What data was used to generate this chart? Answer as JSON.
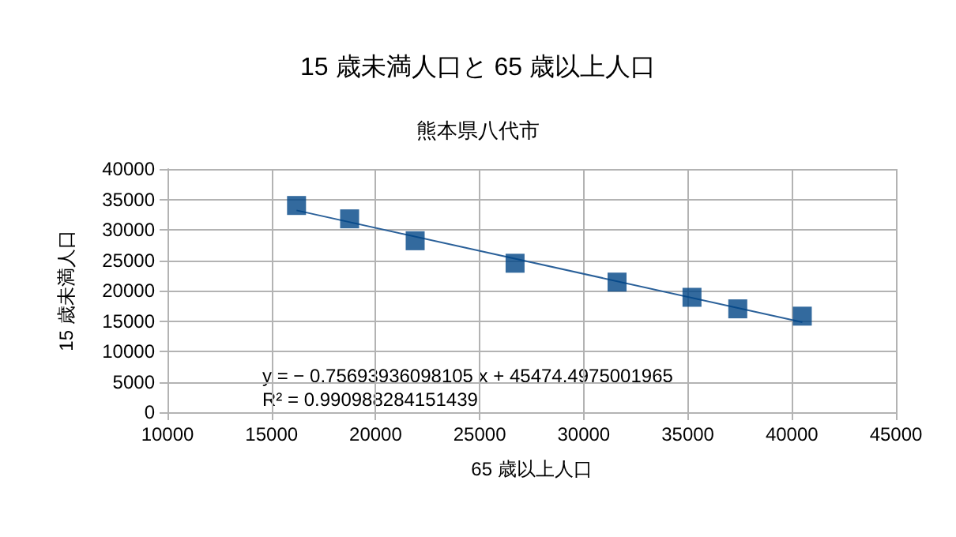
{
  "chart_data": {
    "type": "scatter",
    "title": "15 歳未満人口と 65 歳以上人口",
    "subtitle": "熊本県八代市",
    "xlabel": "65 歳以上人口",
    "ylabel": "15 歳未満人口",
    "xlim": [
      10000,
      45000
    ],
    "xticks": [
      10000,
      15000,
      20000,
      25000,
      30000,
      35000,
      40000,
      45000
    ],
    "ylim": [
      0,
      40000
    ],
    "yticks": [
      0,
      5000,
      10000,
      15000,
      20000,
      25000,
      30000,
      35000,
      40000
    ],
    "grid": true,
    "marker": "square",
    "series": [
      {
        "color": "#004586",
        "x": [
          16200,
          18750,
          21900,
          26700,
          31600,
          35200,
          37400,
          40500
        ],
        "values": [
          34000,
          31800,
          28200,
          24500,
          21400,
          18900,
          17000,
          15800
        ]
      },
      {
        "type": "line",
        "marker": "none",
        "color": "#2a6099",
        "x": [
          16200,
          40500
        ],
        "values": [
          33200,
          14800
        ]
      }
    ],
    "annotations": [
      "y = − 0.75693936098105 x + 45474.4975001965",
      "R² = 0.990988284151439"
    ]
  }
}
